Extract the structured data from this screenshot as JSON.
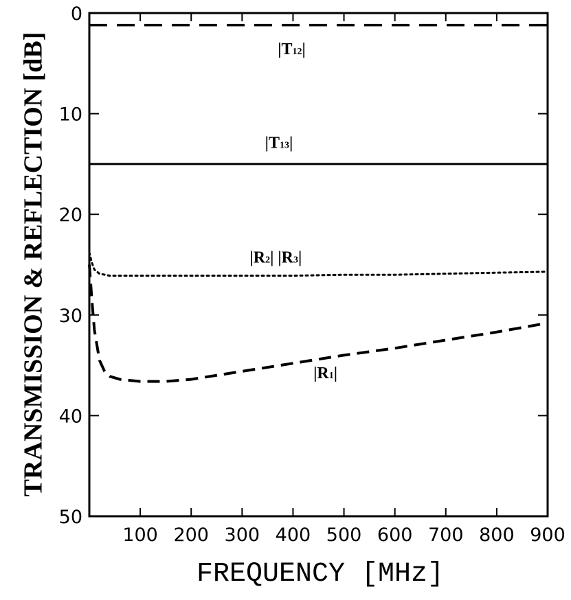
{
  "chart_data": {
    "type": "line",
    "xlabel": "FREQUENCY [MHz]",
    "ylabel": "TRANSMISSION & REFLECTION [dB]",
    "xlim": [
      0,
      900
    ],
    "ylim": [
      0,
      50
    ],
    "y_inverted": true,
    "x_ticks": [
      100,
      200,
      300,
      400,
      500,
      600,
      700,
      800,
      900
    ],
    "y_ticks": [
      0,
      10,
      20,
      30,
      40,
      50
    ],
    "grid": false,
    "series": [
      {
        "name": "|T12|",
        "style": "dashed-long",
        "x": [
          0,
          900
        ],
        "y": [
          1.2,
          1.2
        ]
      },
      {
        "name": "|T13|",
        "style": "solid",
        "x": [
          0,
          900
        ],
        "y": [
          15.0,
          15.0
        ]
      },
      {
        "name": "|R2|  |R3|",
        "style": "dotted",
        "x": [
          0,
          5,
          10,
          20,
          40,
          60,
          100,
          200,
          300,
          400,
          500,
          600,
          700,
          800,
          900
        ],
        "y": [
          23.8,
          24.8,
          25.5,
          25.9,
          26.1,
          26.1,
          26.1,
          26.1,
          26.1,
          26.1,
          26.0,
          26.0,
          25.9,
          25.8,
          25.7
        ]
      },
      {
        "name": "|R1|",
        "style": "dashed",
        "x": [
          0,
          5,
          10,
          20,
          30,
          40,
          60,
          100,
          150,
          200,
          300,
          400,
          500,
          600,
          700,
          800,
          900
        ],
        "y": [
          25.0,
          28.5,
          31.5,
          34.5,
          35.6,
          36.1,
          36.4,
          36.6,
          36.6,
          36.4,
          35.6,
          34.8,
          34.0,
          33.3,
          32.5,
          31.7,
          30.8
        ]
      }
    ],
    "annotations": [
      {
        "id": "t12",
        "main": "|T",
        "sub": "12",
        "tail": "|",
        "x": 370,
        "y": 4.1
      },
      {
        "id": "t13",
        "main": "|T",
        "sub": "13",
        "tail": "|",
        "x": 345,
        "y": 13.4
      },
      {
        "id": "r2r3",
        "main": "|R",
        "sub": "2",
        "tail": "|  |R",
        "sub2": "3",
        "tail2": "|",
        "x": 315,
        "y": 24.8
      },
      {
        "id": "r1",
        "main": "|R",
        "sub": "1",
        "tail": "|",
        "x": 440,
        "y": 36.3
      }
    ]
  }
}
